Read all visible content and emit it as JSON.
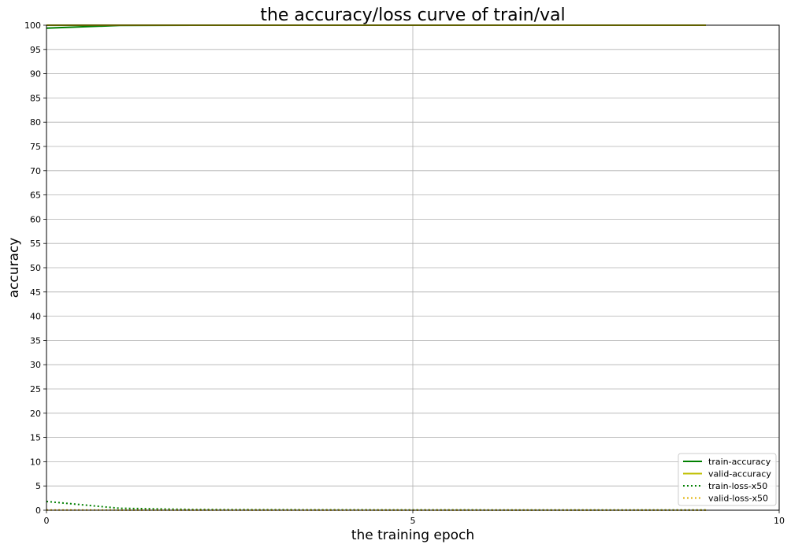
{
  "chart_data": {
    "type": "line",
    "title": "the accuracy/loss curve of train/val",
    "xlabel": "the training epoch",
    "ylabel": "accuracy",
    "xlim": [
      0,
      10
    ],
    "ylim": [
      0,
      100
    ],
    "xticks": [
      "0",
      "5",
      "10"
    ],
    "yticks": [
      "0",
      "5",
      "10",
      "15",
      "20",
      "25",
      "30",
      "35",
      "40",
      "45",
      "50",
      "55",
      "60",
      "65",
      "70",
      "75",
      "80",
      "85",
      "90",
      "95",
      "100"
    ],
    "grid": true,
    "legend_position": "lower-right",
    "series": [
      {
        "name": "train-accuracy",
        "color": "#008000",
        "style": "solid",
        "x": [
          0,
          1,
          2,
          3,
          4,
          5,
          6,
          7,
          8,
          9
        ],
        "y": [
          99.4,
          99.95,
          100,
          100,
          100,
          100,
          100,
          100,
          100,
          100
        ]
      },
      {
        "name": "valid-accuracy",
        "color": "#bfbf00",
        "style": "solid",
        "x": [
          0,
          1,
          2,
          3,
          4,
          5,
          6,
          7,
          8,
          9
        ],
        "y": [
          100,
          100,
          100,
          100,
          100,
          100,
          100,
          100,
          100,
          100
        ]
      },
      {
        "name": "train-loss-x50",
        "color": "#008000",
        "style": "dotted",
        "x": [
          0,
          1,
          2,
          3,
          4,
          5,
          6,
          7,
          8,
          9
        ],
        "y": [
          1.8,
          0.4,
          0.15,
          0.1,
          0.08,
          0.06,
          0.05,
          0.05,
          0.04,
          0.04
        ]
      },
      {
        "name": "valid-loss-x50",
        "color": "#e0b000",
        "style": "dotted",
        "x": [
          0,
          1,
          2,
          3,
          4,
          5,
          6,
          7,
          8,
          9
        ],
        "y": [
          0.05,
          0.03,
          0.03,
          0.02,
          0.02,
          0.02,
          0.02,
          0.02,
          0.02,
          0.02
        ]
      }
    ]
  }
}
